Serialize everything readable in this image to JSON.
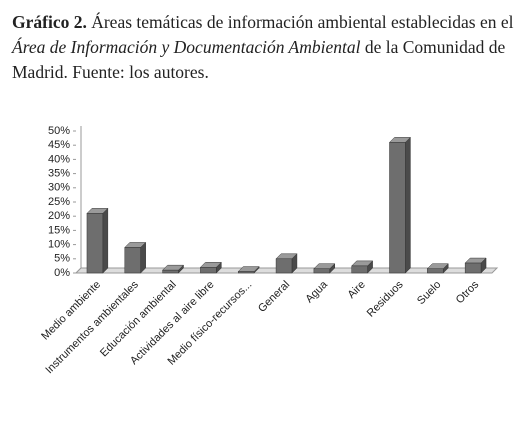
{
  "caption": {
    "label": "Gráfico 2.",
    "text_before": " Áreas temáticas de información ambiental establecidas en el ",
    "text_italic": "Área de Información y Documentación Ambiental",
    "text_after": " de la Comunidad de Madrid. Fuente: los autores."
  },
  "chart_data": {
    "type": "bar3d",
    "categories": [
      "Medio ambiente",
      "Instrumentos ambientales",
      "Educación ambiental",
      "Actividades al aire libre",
      "Medio físico-recursos...",
      "General",
      "Agua",
      "Aire",
      "Residuos",
      "Suelo",
      "Otros"
    ],
    "values": [
      21,
      9,
      1,
      2,
      0.5,
      5,
      1.5,
      2.5,
      46,
      1.5,
      3.5
    ],
    "color": "#6e6e6e",
    "ylim": [
      0,
      50
    ],
    "yticks": [
      {
        "value": 0,
        "label": "0%"
      },
      {
        "value": 5,
        "label": "5%"
      },
      {
        "value": 10,
        "label": "10%"
      },
      {
        "value": 15,
        "label": "15%"
      },
      {
        "value": 20,
        "label": "20%"
      },
      {
        "value": 25,
        "label": "25%"
      },
      {
        "value": 30,
        "label": "30%"
      },
      {
        "value": 35,
        "label": "35%"
      },
      {
        "value": 40,
        "label": "40%"
      },
      {
        "value": 45,
        "label": "45%"
      },
      {
        "value": 50,
        "label": "50%"
      }
    ]
  }
}
